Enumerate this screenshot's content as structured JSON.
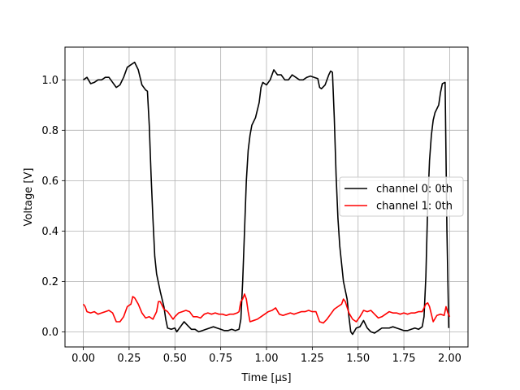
{
  "chart_data": {
    "type": "line",
    "title": "",
    "xlabel": "Time [μs]",
    "ylabel": "Voltage [V]",
    "xlim": [
      -0.1,
      2.1
    ],
    "ylim": [
      -0.06,
      1.13
    ],
    "x_ticks": [
      0.0,
      0.25,
      0.5,
      0.75,
      1.0,
      1.25,
      1.5,
      1.75,
      2.0
    ],
    "x_tick_labels": [
      "0.00",
      "0.25",
      "0.50",
      "0.75",
      "1.00",
      "1.25",
      "1.50",
      "1.75",
      "2.00"
    ],
    "y_ticks": [
      0.0,
      0.2,
      0.4,
      0.6,
      0.8,
      1.0
    ],
    "y_tick_labels": [
      "0.0",
      "0.2",
      "0.4",
      "0.6",
      "0.8",
      "1.0"
    ],
    "grid": true,
    "legend_position": "center-right",
    "series": [
      {
        "name": "channel 0: 0th",
        "color": "#000000",
        "points": [
          [
            0.0,
            1.0
          ],
          [
            0.02,
            1.01
          ],
          [
            0.04,
            0.985
          ],
          [
            0.06,
            0.99
          ],
          [
            0.08,
            1.0
          ],
          [
            0.1,
            1.0
          ],
          [
            0.12,
            1.01
          ],
          [
            0.14,
            1.01
          ],
          [
            0.16,
            0.99
          ],
          [
            0.18,
            0.97
          ],
          [
            0.2,
            0.98
          ],
          [
            0.22,
            1.01
          ],
          [
            0.24,
            1.05
          ],
          [
            0.26,
            1.06
          ],
          [
            0.28,
            1.07
          ],
          [
            0.3,
            1.04
          ],
          [
            0.32,
            0.98
          ],
          [
            0.34,
            0.96
          ],
          [
            0.35,
            0.955
          ],
          [
            0.36,
            0.82
          ],
          [
            0.37,
            0.62
          ],
          [
            0.38,
            0.45
          ],
          [
            0.39,
            0.3
          ],
          [
            0.4,
            0.23
          ],
          [
            0.42,
            0.16
          ],
          [
            0.44,
            0.1
          ],
          [
            0.45,
            0.05
          ],
          [
            0.46,
            0.015
          ],
          [
            0.48,
            0.01
          ],
          [
            0.5,
            0.015
          ],
          [
            0.51,
            0.0
          ],
          [
            0.53,
            0.02
          ],
          [
            0.55,
            0.04
          ],
          [
            0.57,
            0.025
          ],
          [
            0.59,
            0.01
          ],
          [
            0.61,
            0.01
          ],
          [
            0.63,
            0.0
          ],
          [
            0.65,
            0.005
          ],
          [
            0.67,
            0.01
          ],
          [
            0.69,
            0.015
          ],
          [
            0.71,
            0.02
          ],
          [
            0.73,
            0.015
          ],
          [
            0.75,
            0.01
          ],
          [
            0.77,
            0.005
          ],
          [
            0.79,
            0.005
          ],
          [
            0.81,
            0.01
          ],
          [
            0.83,
            0.005
          ],
          [
            0.85,
            0.01
          ],
          [
            0.86,
            0.05
          ],
          [
            0.87,
            0.2
          ],
          [
            0.88,
            0.4
          ],
          [
            0.89,
            0.6
          ],
          [
            0.9,
            0.72
          ],
          [
            0.91,
            0.78
          ],
          [
            0.92,
            0.82
          ],
          [
            0.94,
            0.85
          ],
          [
            0.96,
            0.91
          ],
          [
            0.97,
            0.97
          ],
          [
            0.98,
            0.99
          ],
          [
            1.0,
            0.98
          ],
          [
            1.02,
            1.0
          ],
          [
            1.04,
            1.04
          ],
          [
            1.06,
            1.02
          ],
          [
            1.08,
            1.02
          ],
          [
            1.1,
            1.0
          ],
          [
            1.12,
            1.0
          ],
          [
            1.14,
            1.02
          ],
          [
            1.16,
            1.01
          ],
          [
            1.18,
            1.0
          ],
          [
            1.2,
            1.0
          ],
          [
            1.22,
            1.01
          ],
          [
            1.24,
            1.015
          ],
          [
            1.26,
            1.01
          ],
          [
            1.28,
            1.005
          ],
          [
            1.29,
            0.97
          ],
          [
            1.3,
            0.965
          ],
          [
            1.32,
            0.98
          ],
          [
            1.34,
            1.02
          ],
          [
            1.35,
            1.035
          ],
          [
            1.36,
            1.03
          ],
          [
            1.37,
            0.85
          ],
          [
            1.38,
            0.62
          ],
          [
            1.39,
            0.45
          ],
          [
            1.4,
            0.34
          ],
          [
            1.41,
            0.27
          ],
          [
            1.42,
            0.2
          ],
          [
            1.44,
            0.13
          ],
          [
            1.45,
            0.06
          ],
          [
            1.46,
            0.0
          ],
          [
            1.47,
            -0.01
          ],
          [
            1.49,
            0.015
          ],
          [
            1.51,
            0.02
          ],
          [
            1.53,
            0.045
          ],
          [
            1.55,
            0.015
          ],
          [
            1.57,
            0.0
          ],
          [
            1.59,
            -0.005
          ],
          [
            1.61,
            0.005
          ],
          [
            1.63,
            0.015
          ],
          [
            1.65,
            0.015
          ],
          [
            1.67,
            0.015
          ],
          [
            1.69,
            0.02
          ],
          [
            1.71,
            0.015
          ],
          [
            1.73,
            0.01
          ],
          [
            1.75,
            0.005
          ],
          [
            1.77,
            0.005
          ],
          [
            1.79,
            0.01
          ],
          [
            1.81,
            0.015
          ],
          [
            1.83,
            0.01
          ],
          [
            1.85,
            0.02
          ],
          [
            1.86,
            0.06
          ],
          [
            1.87,
            0.22
          ],
          [
            1.88,
            0.5
          ],
          [
            1.89,
            0.68
          ],
          [
            1.9,
            0.78
          ],
          [
            1.91,
            0.84
          ],
          [
            1.92,
            0.87
          ],
          [
            1.94,
            0.9
          ],
          [
            1.95,
            0.95
          ],
          [
            1.96,
            0.985
          ],
          [
            1.975,
            0.99
          ],
          [
            1.985,
            0.4
          ],
          [
            1.995,
            0.015
          ]
        ]
      },
      {
        "name": "channel 1: 0th",
        "color": "#ff0000",
        "points": [
          [
            0.0,
            0.11
          ],
          [
            0.01,
            0.1
          ],
          [
            0.02,
            0.08
          ],
          [
            0.04,
            0.075
          ],
          [
            0.06,
            0.08
          ],
          [
            0.08,
            0.07
          ],
          [
            0.1,
            0.075
          ],
          [
            0.12,
            0.08
          ],
          [
            0.14,
            0.085
          ],
          [
            0.16,
            0.075
          ],
          [
            0.18,
            0.04
          ],
          [
            0.2,
            0.04
          ],
          [
            0.22,
            0.06
          ],
          [
            0.24,
            0.1
          ],
          [
            0.26,
            0.11
          ],
          [
            0.27,
            0.14
          ],
          [
            0.28,
            0.135
          ],
          [
            0.3,
            0.11
          ],
          [
            0.32,
            0.075
          ],
          [
            0.34,
            0.055
          ],
          [
            0.36,
            0.06
          ],
          [
            0.38,
            0.05
          ],
          [
            0.4,
            0.08
          ],
          [
            0.41,
            0.12
          ],
          [
            0.42,
            0.12
          ],
          [
            0.44,
            0.09
          ],
          [
            0.46,
            0.08
          ],
          [
            0.48,
            0.06
          ],
          [
            0.49,
            0.05
          ],
          [
            0.5,
            0.06
          ],
          [
            0.52,
            0.075
          ],
          [
            0.54,
            0.08
          ],
          [
            0.56,
            0.085
          ],
          [
            0.58,
            0.08
          ],
          [
            0.6,
            0.06
          ],
          [
            0.62,
            0.06
          ],
          [
            0.64,
            0.055
          ],
          [
            0.66,
            0.07
          ],
          [
            0.68,
            0.075
          ],
          [
            0.7,
            0.07
          ],
          [
            0.72,
            0.075
          ],
          [
            0.74,
            0.07
          ],
          [
            0.76,
            0.07
          ],
          [
            0.78,
            0.065
          ],
          [
            0.8,
            0.07
          ],
          [
            0.82,
            0.07
          ],
          [
            0.84,
            0.075
          ],
          [
            0.85,
            0.08
          ],
          [
            0.86,
            0.12
          ],
          [
            0.87,
            0.13
          ],
          [
            0.88,
            0.15
          ],
          [
            0.89,
            0.13
          ],
          [
            0.9,
            0.08
          ],
          [
            0.91,
            0.04
          ],
          [
            0.93,
            0.045
          ],
          [
            0.95,
            0.05
          ],
          [
            0.97,
            0.06
          ],
          [
            0.99,
            0.07
          ],
          [
            1.01,
            0.08
          ],
          [
            1.03,
            0.085
          ],
          [
            1.05,
            0.095
          ],
          [
            1.07,
            0.07
          ],
          [
            1.09,
            0.065
          ],
          [
            1.11,
            0.07
          ],
          [
            1.13,
            0.075
          ],
          [
            1.15,
            0.07
          ],
          [
            1.17,
            0.075
          ],
          [
            1.19,
            0.08
          ],
          [
            1.21,
            0.08
          ],
          [
            1.23,
            0.085
          ],
          [
            1.25,
            0.08
          ],
          [
            1.27,
            0.08
          ],
          [
            1.29,
            0.04
          ],
          [
            1.31,
            0.035
          ],
          [
            1.33,
            0.05
          ],
          [
            1.35,
            0.07
          ],
          [
            1.37,
            0.09
          ],
          [
            1.39,
            0.1
          ],
          [
            1.41,
            0.11
          ],
          [
            1.42,
            0.13
          ],
          [
            1.43,
            0.12
          ],
          [
            1.45,
            0.075
          ],
          [
            1.47,
            0.05
          ],
          [
            1.49,
            0.04
          ],
          [
            1.51,
            0.06
          ],
          [
            1.53,
            0.085
          ],
          [
            1.55,
            0.08
          ],
          [
            1.57,
            0.085
          ],
          [
            1.59,
            0.07
          ],
          [
            1.61,
            0.055
          ],
          [
            1.63,
            0.06
          ],
          [
            1.65,
            0.07
          ],
          [
            1.67,
            0.08
          ],
          [
            1.69,
            0.075
          ],
          [
            1.71,
            0.075
          ],
          [
            1.73,
            0.07
          ],
          [
            1.75,
            0.075
          ],
          [
            1.77,
            0.07
          ],
          [
            1.79,
            0.075
          ],
          [
            1.81,
            0.075
          ],
          [
            1.83,
            0.08
          ],
          [
            1.85,
            0.08
          ],
          [
            1.87,
            0.11
          ],
          [
            1.88,
            0.115
          ],
          [
            1.89,
            0.1
          ],
          [
            1.9,
            0.07
          ],
          [
            1.91,
            0.04
          ],
          [
            1.93,
            0.065
          ],
          [
            1.95,
            0.07
          ],
          [
            1.97,
            0.065
          ],
          [
            1.98,
            0.1
          ],
          [
            1.99,
            0.075
          ],
          [
            2.0,
            0.06
          ]
        ]
      }
    ]
  }
}
